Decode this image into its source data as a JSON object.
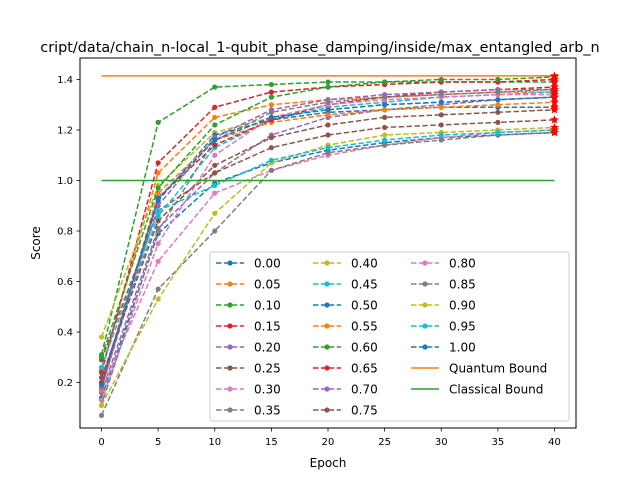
{
  "chart_data": {
    "type": "line",
    "title": "cript/data/chain_n-local_1-qubit_phase_damping/inside/max_entangled_arb_n",
    "xlabel": "Epoch",
    "ylabel": "Score",
    "xlim": [
      -1.9,
      41.9
    ],
    "ylim": [
      0.02,
      1.485
    ],
    "xticks": [
      0,
      5,
      10,
      15,
      20,
      25,
      30,
      35,
      40
    ],
    "yticks": [
      0.2,
      0.4,
      0.6,
      0.8,
      1.0,
      1.2,
      1.4
    ],
    "ytick_labels": [
      "0.2",
      "0.4",
      "0.6",
      "0.8",
      "1.0",
      "1.2",
      "1.4"
    ],
    "grid": false,
    "legend": {
      "placement": "lower-right",
      "columns": 3
    },
    "x": [
      0,
      5,
      10,
      15,
      20,
      25,
      30,
      35,
      40
    ],
    "series": [
      {
        "name": "0.00",
        "color": "#1f77b4",
        "values": [
          0.14,
          0.79,
          0.99,
          1.07,
          1.12,
          1.15,
          1.17,
          1.18,
          1.19
        ]
      },
      {
        "name": "0.05",
        "color": "#ff7f0e",
        "values": [
          0.25,
          1.03,
          1.25,
          1.3,
          1.32,
          1.33,
          1.34,
          1.35,
          1.35
        ]
      },
      {
        "name": "0.10",
        "color": "#2ca02c",
        "values": [
          0.31,
          1.23,
          1.37,
          1.38,
          1.39,
          1.39,
          1.39,
          1.39,
          1.39
        ]
      },
      {
        "name": "0.15",
        "color": "#d62728",
        "values": [
          0.24,
          1.07,
          1.29,
          1.35,
          1.37,
          1.38,
          1.39,
          1.39,
          1.4
        ]
      },
      {
        "name": "0.20",
        "color": "#9467bd",
        "values": [
          0.16,
          0.81,
          1.03,
          1.18,
          1.25,
          1.28,
          1.3,
          1.32,
          1.33
        ]
      },
      {
        "name": "0.25",
        "color": "#8c564b",
        "values": [
          0.29,
          0.88,
          1.03,
          1.13,
          1.18,
          1.21,
          1.22,
          1.23,
          1.24
        ]
      },
      {
        "name": "0.30",
        "color": "#e377c2",
        "values": [
          0.17,
          0.68,
          0.95,
          1.04,
          1.1,
          1.14,
          1.17,
          1.19,
          1.2
        ]
      },
      {
        "name": "0.35",
        "color": "#7f7f7f",
        "values": [
          0.07,
          0.57,
          0.8,
          1.04,
          1.11,
          1.14,
          1.16,
          1.18,
          1.19
        ]
      },
      {
        "name": "0.40",
        "color": "#bcbd22",
        "values": [
          0.38,
          0.98,
          1.19,
          1.25,
          1.28,
          1.3,
          1.31,
          1.32,
          1.33
        ]
      },
      {
        "name": "0.45",
        "color": "#17becf",
        "values": [
          0.22,
          0.86,
          1.13,
          1.24,
          1.29,
          1.31,
          1.33,
          1.34,
          1.35
        ]
      },
      {
        "name": "0.50",
        "color": "#1f77b4",
        "values": [
          0.2,
          0.92,
          1.18,
          1.24,
          1.27,
          1.28,
          1.29,
          1.29,
          1.29
        ]
      },
      {
        "name": "0.55",
        "color": "#ff7f0e",
        "values": [
          0.17,
          0.95,
          1.16,
          1.23,
          1.26,
          1.28,
          1.29,
          1.3,
          1.31
        ]
      },
      {
        "name": "0.60",
        "color": "#2ca02c",
        "values": [
          0.3,
          0.97,
          1.22,
          1.33,
          1.37,
          1.39,
          1.4,
          1.4,
          1.41
        ]
      },
      {
        "name": "0.65",
        "color": "#d62728",
        "values": [
          0.2,
          0.93,
          1.14,
          1.24,
          1.3,
          1.33,
          1.35,
          1.36,
          1.37
        ]
      },
      {
        "name": "0.70",
        "color": "#9467bd",
        "values": [
          0.18,
          0.9,
          1.17,
          1.28,
          1.32,
          1.34,
          1.35,
          1.36,
          1.36
        ]
      },
      {
        "name": "0.75",
        "color": "#8c564b",
        "values": [
          0.22,
          0.84,
          1.06,
          1.17,
          1.22,
          1.25,
          1.26,
          1.27,
          1.28
        ]
      },
      {
        "name": "0.80",
        "color": "#e377c2",
        "values": [
          0.13,
          0.75,
          1.1,
          1.25,
          1.3,
          1.32,
          1.33,
          1.34,
          1.34
        ]
      },
      {
        "name": "0.85",
        "color": "#7f7f7f",
        "values": [
          0.11,
          0.8,
          1.16,
          1.27,
          1.31,
          1.33,
          1.34,
          1.35,
          1.36
        ]
      },
      {
        "name": "0.90",
        "color": "#bcbd22",
        "values": [
          0.11,
          0.53,
          0.87,
          1.07,
          1.14,
          1.18,
          1.19,
          1.2,
          1.21
        ]
      },
      {
        "name": "0.95",
        "color": "#17becf",
        "values": [
          0.26,
          0.88,
          0.98,
          1.08,
          1.13,
          1.16,
          1.18,
          1.19,
          1.2
        ]
      },
      {
        "name": "1.00",
        "color": "#1f77b4",
        "values": [
          0.19,
          0.93,
          1.16,
          1.25,
          1.28,
          1.3,
          1.31,
          1.32,
          1.33
        ]
      }
    ],
    "bounds": [
      {
        "name": "Quantum Bound",
        "color": "#ff7f0e",
        "value": 1.414
      },
      {
        "name": "Classical Bound",
        "color": "#2ca02c",
        "value": 1.0
      }
    ],
    "final_marker_color": "#ff0000"
  }
}
